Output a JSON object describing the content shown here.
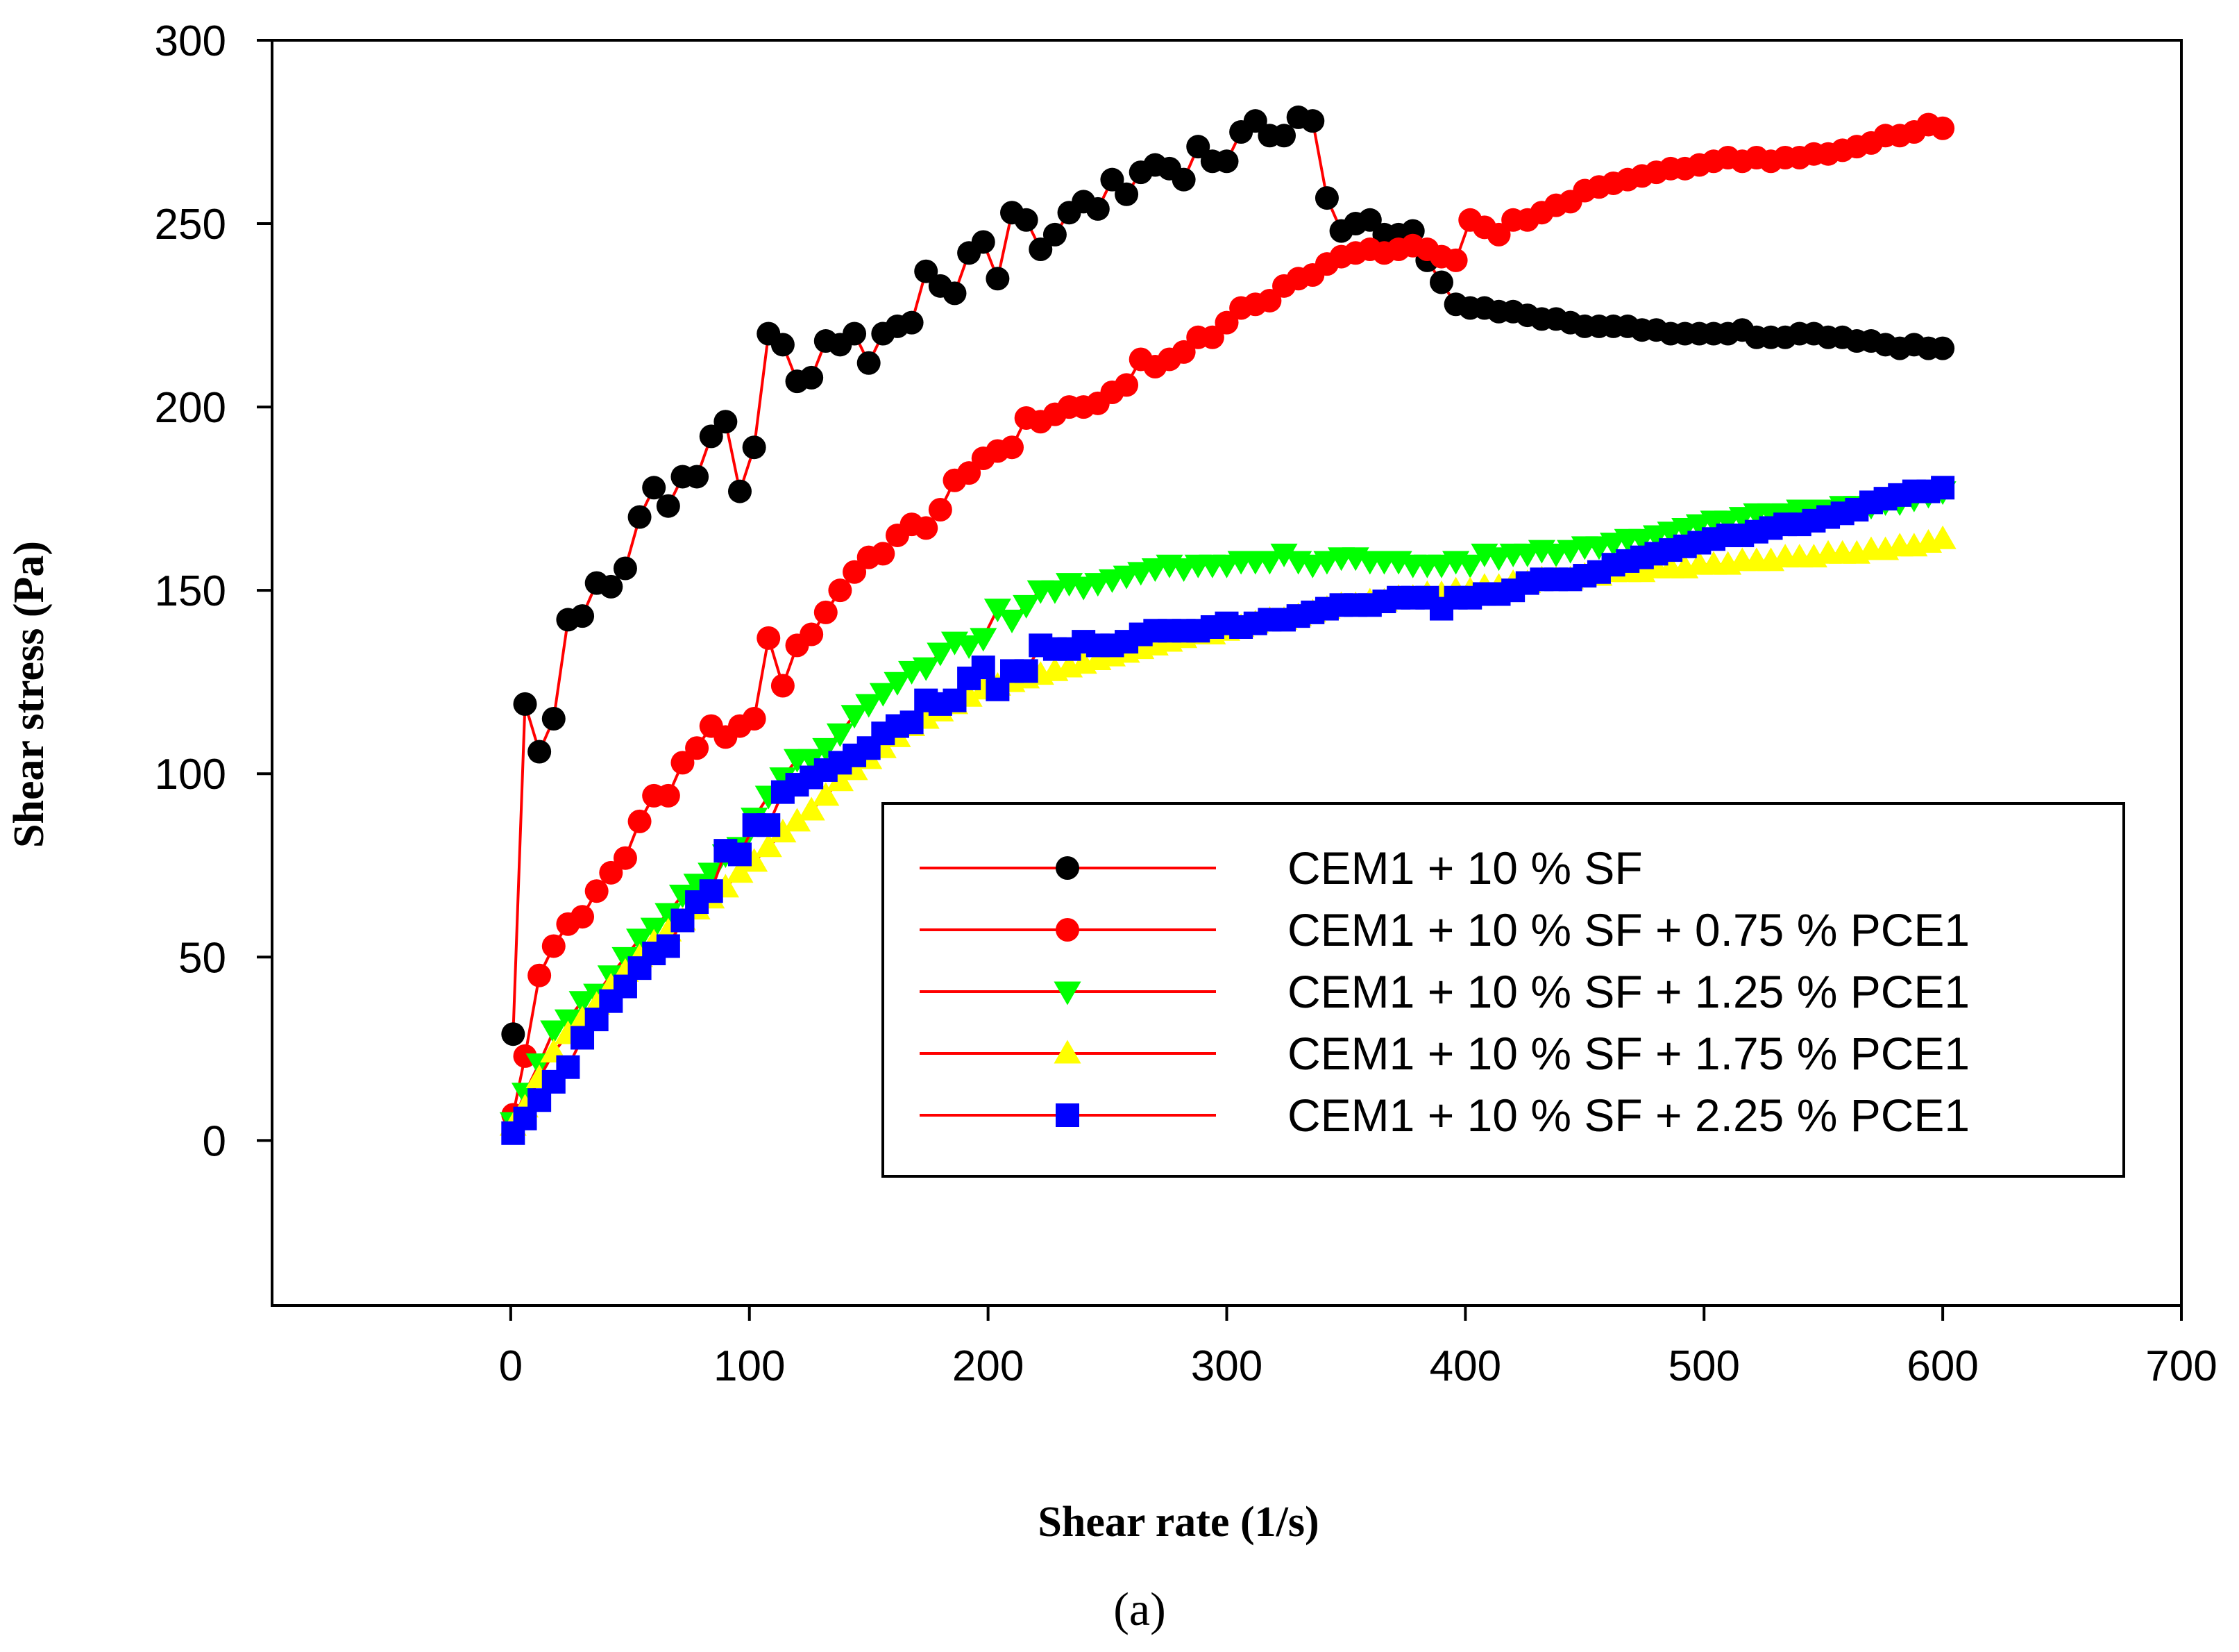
{
  "chart_data": {
    "type": "line",
    "xlabel": "Shear rate (1/s)",
    "ylabel": "Shear stress (Pa)",
    "caption": "(a)",
    "xlim": [
      -100,
      700
    ],
    "ylim": [
      -45,
      300
    ],
    "x_ticks": [
      0,
      100,
      200,
      300,
      400,
      500,
      600,
      700
    ],
    "y_ticks": [
      0,
      50,
      100,
      150,
      200,
      250,
      300
    ],
    "x_tick_labels": [
      "0",
      "100",
      "200",
      "300",
      "400",
      "500",
      "600",
      "700"
    ],
    "y_tick_labels": [
      "0",
      "50",
      "100",
      "150",
      "200",
      "250",
      "300"
    ],
    "grid": false,
    "legend_position": "bottom-right",
    "line_color": "#ff0000",
    "series": [
      {
        "name": "CEM1 + 10 % SF",
        "marker": "circle",
        "color": "#000000",
        "x": [
          1,
          6,
          12,
          18,
          24,
          30,
          36,
          42,
          48,
          54,
          60,
          66,
          72,
          78,
          84,
          90,
          96,
          102,
          108,
          114,
          120,
          126,
          132,
          138,
          144,
          150,
          156,
          162,
          168,
          174,
          180,
          186,
          192,
          198,
          204,
          210,
          216,
          222,
          228,
          234,
          240,
          246,
          252,
          258,
          264,
          270,
          276,
          282,
          288,
          294,
          300,
          306,
          312,
          318,
          324,
          330,
          336,
          342,
          348,
          354,
          360,
          366,
          372,
          378,
          384,
          390,
          396,
          402,
          408,
          414,
          420,
          426,
          432,
          438,
          444,
          450,
          456,
          462,
          468,
          474,
          480,
          486,
          492,
          498,
          504,
          510,
          516,
          522,
          528,
          534,
          540,
          546,
          552,
          558,
          564,
          570,
          576,
          582,
          588,
          594,
          600
        ],
        "y": [
          29,
          119,
          106,
          115,
          142,
          143,
          152,
          151,
          156,
          170,
          178,
          173,
          181,
          181,
          192,
          196,
          177,
          189,
          220,
          217,
          207,
          208,
          218,
          217,
          220,
          212,
          220,
          222,
          223,
          237,
          233,
          231,
          242,
          245,
          235,
          253,
          251,
          243,
          247,
          253,
          256,
          254,
          262,
          258,
          264,
          266,
          265,
          262,
          271,
          267,
          267,
          275,
          278,
          274,
          274,
          279,
          278,
          257,
          248,
          250,
          251,
          247,
          247,
          248,
          240,
          234,
          228,
          227,
          227,
          226,
          226,
          225,
          224,
          224,
          223,
          222,
          222,
          222,
          222,
          221,
          221,
          220,
          220,
          220,
          220,
          220,
          221,
          219,
          219,
          219,
          220,
          220,
          219,
          219,
          218,
          218,
          217,
          216,
          217,
          216,
          216
        ]
      },
      {
        "name": "CEM1 + 10 % SF + 0.75 % PCE1",
        "marker": "circle",
        "color": "#ff0000",
        "x": [
          1,
          6,
          12,
          18,
          24,
          30,
          36,
          42,
          48,
          54,
          60,
          66,
          72,
          78,
          84,
          90,
          96,
          102,
          108,
          114,
          120,
          126,
          132,
          138,
          144,
          150,
          156,
          162,
          168,
          174,
          180,
          186,
          192,
          198,
          204,
          210,
          216,
          222,
          228,
          234,
          240,
          246,
          252,
          258,
          264,
          270,
          276,
          282,
          288,
          294,
          300,
          306,
          312,
          318,
          324,
          330,
          336,
          342,
          348,
          354,
          360,
          366,
          372,
          378,
          384,
          390,
          396,
          402,
          408,
          414,
          420,
          426,
          432,
          438,
          444,
          450,
          456,
          462,
          468,
          474,
          480,
          486,
          492,
          498,
          504,
          510,
          516,
          522,
          528,
          534,
          540,
          546,
          552,
          558,
          564,
          570,
          576,
          582,
          588,
          594,
          600
        ],
        "y": [
          7,
          23,
          45,
          53,
          59,
          61,
          68,
          73,
          77,
          87,
          94,
          94,
          103,
          107,
          113,
          110,
          113,
          115,
          137,
          124,
          135,
          138,
          144,
          150,
          155,
          159,
          160,
          165,
          168,
          167,
          172,
          180,
          182,
          186,
          188,
          189,
          197,
          196,
          198,
          200,
          200,
          201,
          204,
          206,
          213,
          211,
          213,
          215,
          219,
          219,
          223,
          227,
          228,
          229,
          233,
          235,
          236,
          239,
          241,
          242,
          243,
          242,
          243,
          244,
          243,
          241,
          240,
          251,
          249,
          247,
          251,
          251,
          253,
          255,
          256,
          259,
          260,
          261,
          262,
          263,
          264,
          265,
          265,
          266,
          267,
          268,
          267,
          268,
          267,
          268,
          268,
          269,
          269,
          270,
          271,
          272,
          274,
          274,
          275,
          277,
          276
        ]
      },
      {
        "name": "CEM1 + 10 % SF + 1.25 % PCE1",
        "marker": "triangle-down",
        "color": "#00ff00",
        "x": [
          1,
          6,
          12,
          18,
          24,
          30,
          36,
          42,
          48,
          54,
          60,
          66,
          72,
          78,
          84,
          90,
          96,
          102,
          108,
          114,
          120,
          126,
          132,
          138,
          144,
          150,
          156,
          162,
          168,
          174,
          180,
          186,
          192,
          198,
          204,
          210,
          216,
          222,
          228,
          234,
          240,
          246,
          252,
          258,
          264,
          270,
          276,
          282,
          288,
          294,
          300,
          306,
          312,
          318,
          324,
          330,
          336,
          342,
          348,
          354,
          360,
          366,
          372,
          378,
          384,
          390,
          396,
          402,
          408,
          414,
          420,
          426,
          432,
          438,
          444,
          450,
          456,
          462,
          468,
          474,
          480,
          486,
          492,
          498,
          504,
          510,
          516,
          522,
          528,
          534,
          540,
          546,
          552,
          558,
          564,
          570,
          576,
          582,
          588,
          594,
          600
        ],
        "y": [
          5,
          13,
          21,
          30,
          33,
          38,
          40,
          45,
          50,
          55,
          58,
          62,
          67,
          70,
          73,
          78,
          80,
          88,
          94,
          99,
          104,
          104,
          107,
          111,
          116,
          119,
          122,
          125,
          128,
          129,
          133,
          136,
          135,
          137,
          145,
          142,
          146,
          150,
          150,
          152,
          151,
          152,
          153,
          154,
          155,
          156,
          157,
          156,
          157,
          157,
          157,
          158,
          158,
          158,
          160,
          158,
          157,
          158,
          159,
          159,
          158,
          158,
          158,
          157,
          157,
          157,
          158,
          157,
          160,
          159,
          160,
          160,
          161,
          160,
          161,
          162,
          162,
          163,
          164,
          164,
          165,
          166,
          167,
          168,
          169,
          169,
          170,
          171,
          171,
          171,
          172,
          172,
          172,
          173,
          173,
          173,
          174,
          174,
          175,
          176,
          177
        ]
      },
      {
        "name": "CEM1 + 10 % SF + 1.75 % PCE1",
        "marker": "triangle-up",
        "color": "#ffff00",
        "x": [
          1,
          6,
          12,
          18,
          24,
          30,
          36,
          42,
          48,
          54,
          60,
          66,
          72,
          78,
          84,
          90,
          96,
          102,
          108,
          114,
          120,
          126,
          132,
          138,
          144,
          150,
          156,
          162,
          168,
          174,
          180,
          186,
          192,
          198,
          204,
          210,
          216,
          222,
          228,
          234,
          240,
          246,
          252,
          258,
          264,
          270,
          276,
          282,
          288,
          294,
          300,
          306,
          312,
          318,
          324,
          330,
          336,
          342,
          348,
          354,
          360,
          366,
          372,
          378,
          384,
          390,
          396,
          402,
          408,
          414,
          420,
          426,
          432,
          438,
          444,
          450,
          456,
          462,
          468,
          474,
          480,
          486,
          492,
          498,
          504,
          510,
          516,
          522,
          528,
          534,
          540,
          546,
          552,
          558,
          564,
          570,
          576,
          582,
          588,
          594,
          600
        ],
        "y": [
          4,
          9,
          17,
          24,
          29,
          33,
          37,
          42,
          46,
          50,
          54,
          57,
          60,
          63,
          66,
          69,
          73,
          76,
          80,
          84,
          87,
          90,
          94,
          98,
          101,
          104,
          107,
          110,
          113,
          115,
          117,
          119,
          121,
          123,
          124,
          125,
          126,
          127,
          128,
          129,
          130,
          131,
          132,
          133,
          134,
          135,
          136,
          137,
          138,
          138,
          139,
          140,
          141,
          142,
          142,
          143,
          144,
          145,
          146,
          146,
          147,
          147,
          148,
          148,
          149,
          149,
          150,
          150,
          151,
          151,
          152,
          152,
          153,
          153,
          153,
          154,
          154,
          155,
          155,
          155,
          156,
          156,
          156,
          157,
          157,
          157,
          158,
          158,
          158,
          159,
          159,
          159,
          160,
          160,
          160,
          161,
          161,
          162,
          162,
          163,
          164
        ]
      },
      {
        "name": "CEM1 + 10 % SF + 2.25 % PCE1",
        "marker": "square",
        "color": "#0000ff",
        "x": [
          1,
          6,
          12,
          18,
          24,
          30,
          36,
          42,
          48,
          54,
          60,
          66,
          72,
          78,
          84,
          90,
          96,
          102,
          108,
          114,
          120,
          126,
          132,
          138,
          144,
          150,
          156,
          162,
          168,
          174,
          180,
          186,
          192,
          198,
          204,
          210,
          216,
          222,
          228,
          234,
          240,
          246,
          252,
          258,
          264,
          270,
          276,
          282,
          288,
          294,
          300,
          306,
          312,
          318,
          324,
          330,
          336,
          342,
          348,
          354,
          360,
          366,
          372,
          378,
          384,
          390,
          396,
          402,
          408,
          414,
          420,
          426,
          432,
          438,
          444,
          450,
          456,
          462,
          468,
          474,
          480,
          486,
          492,
          498,
          504,
          510,
          516,
          522,
          528,
          534,
          540,
          546,
          552,
          558,
          564,
          570,
          576,
          582,
          588,
          594,
          600
        ],
        "y": [
          2,
          6,
          11,
          16,
          20,
          28,
          33,
          38,
          42,
          47,
          51,
          53,
          60,
          65,
          68,
          79,
          78,
          86,
          86,
          95,
          97,
          99,
          101,
          103,
          105,
          107,
          111,
          113,
          114,
          120,
          119,
          120,
          126,
          129,
          123,
          128,
          128,
          135,
          134,
          134,
          136,
          135,
          135,
          136,
          138,
          139,
          139,
          139,
          139,
          140,
          141,
          140,
          141,
          142,
          142,
          143,
          144,
          145,
          146,
          146,
          146,
          147,
          148,
          148,
          148,
          145,
          148,
          148,
          149,
          149,
          150,
          152,
          153,
          153,
          153,
          154,
          155,
          157,
          158,
          159,
          160,
          161,
          162,
          163,
          164,
          165,
          165,
          166,
          167,
          168,
          168,
          169,
          170,
          171,
          172,
          174,
          175,
          176,
          177,
          177,
          178
        ]
      }
    ]
  }
}
